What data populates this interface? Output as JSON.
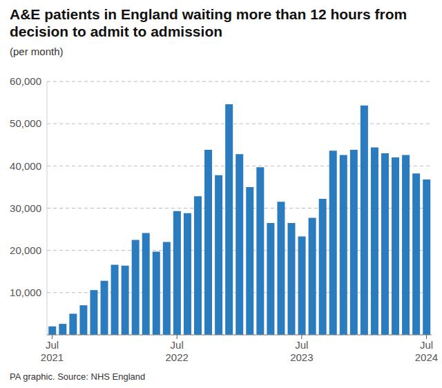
{
  "chart_data": {
    "type": "bar",
    "title": "A&E patients in England waiting more than 12 hours from decision to admit to admission",
    "subtitle": "(per month)",
    "source": "PA graphic. Source: NHS England",
    "categories": [
      "Jul 2021",
      null,
      null,
      null,
      null,
      null,
      null,
      null,
      null,
      null,
      null,
      null,
      "Jul 2022",
      null,
      null,
      null,
      null,
      null,
      null,
      null,
      null,
      null,
      null,
      null,
      "Jul 2023",
      null,
      null,
      null,
      null,
      null,
      null,
      null,
      null,
      null,
      null,
      null,
      "Jul 2024"
    ],
    "values": [
      2000,
      2600,
      5000,
      7000,
      10600,
      12800,
      16600,
      16400,
      22500,
      24100,
      19700,
      22000,
      29300,
      28800,
      32800,
      43800,
      37800,
      54600,
      42800,
      35000,
      39700,
      26500,
      31500,
      26500,
      23300,
      27700,
      32200,
      43600,
      42600,
      43800,
      54300,
      44400,
      43000,
      42000,
      42600,
      38200,
      36800
    ],
    "color": "#2b7bbf",
    "ylim": [
      0,
      60000
    ],
    "yticks": [
      {
        "value": 10000,
        "label": "10,000"
      },
      {
        "value": 20000,
        "label": "20,000"
      },
      {
        "value": 30000,
        "label": "30,000"
      },
      {
        "value": 40000,
        "label": "40,000"
      },
      {
        "value": 50000,
        "label": "50,000"
      },
      {
        "value": 60000,
        "label": "60,000"
      }
    ],
    "grid": true
  }
}
